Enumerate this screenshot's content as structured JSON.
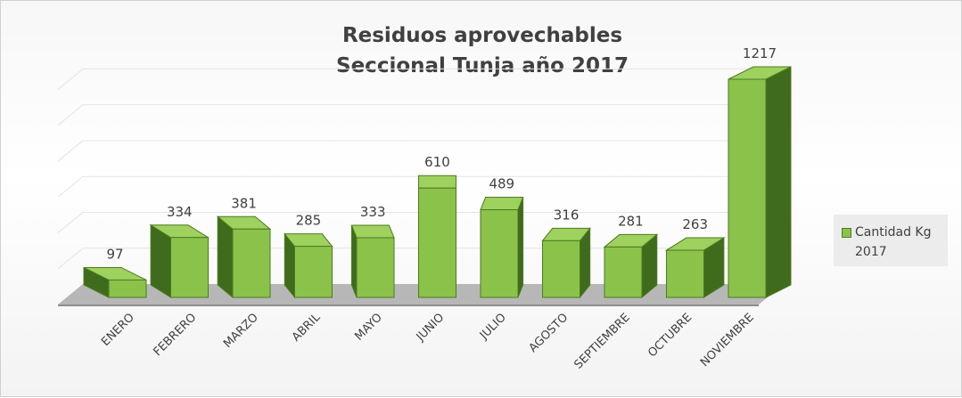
{
  "chart_data": {
    "type": "bar",
    "title_line1": "Residuos aprovechables",
    "title_line2": "Seccional Tunja año 2017",
    "categories": [
      "ENERO",
      "FEBRERO",
      "MARZO",
      "ABRIL",
      "MAYO",
      "JUNIO",
      "JULIO",
      "AGOSTO",
      "SEPTIEMBRE",
      "OCTUBRE",
      "NOVIEMBRE"
    ],
    "series": [
      {
        "name": "Cantidad Kg 2017",
        "values": [
          97,
          334,
          381,
          285,
          333,
          610,
          489,
          316,
          281,
          263,
          1217
        ]
      }
    ],
    "ylim": [
      0,
      1250
    ],
    "grid": true,
    "legend_position": "right",
    "bar_color": "#8bc34a",
    "bar_side_color": "#3f6b1c",
    "bar_edge_color": "#4e7a22"
  }
}
